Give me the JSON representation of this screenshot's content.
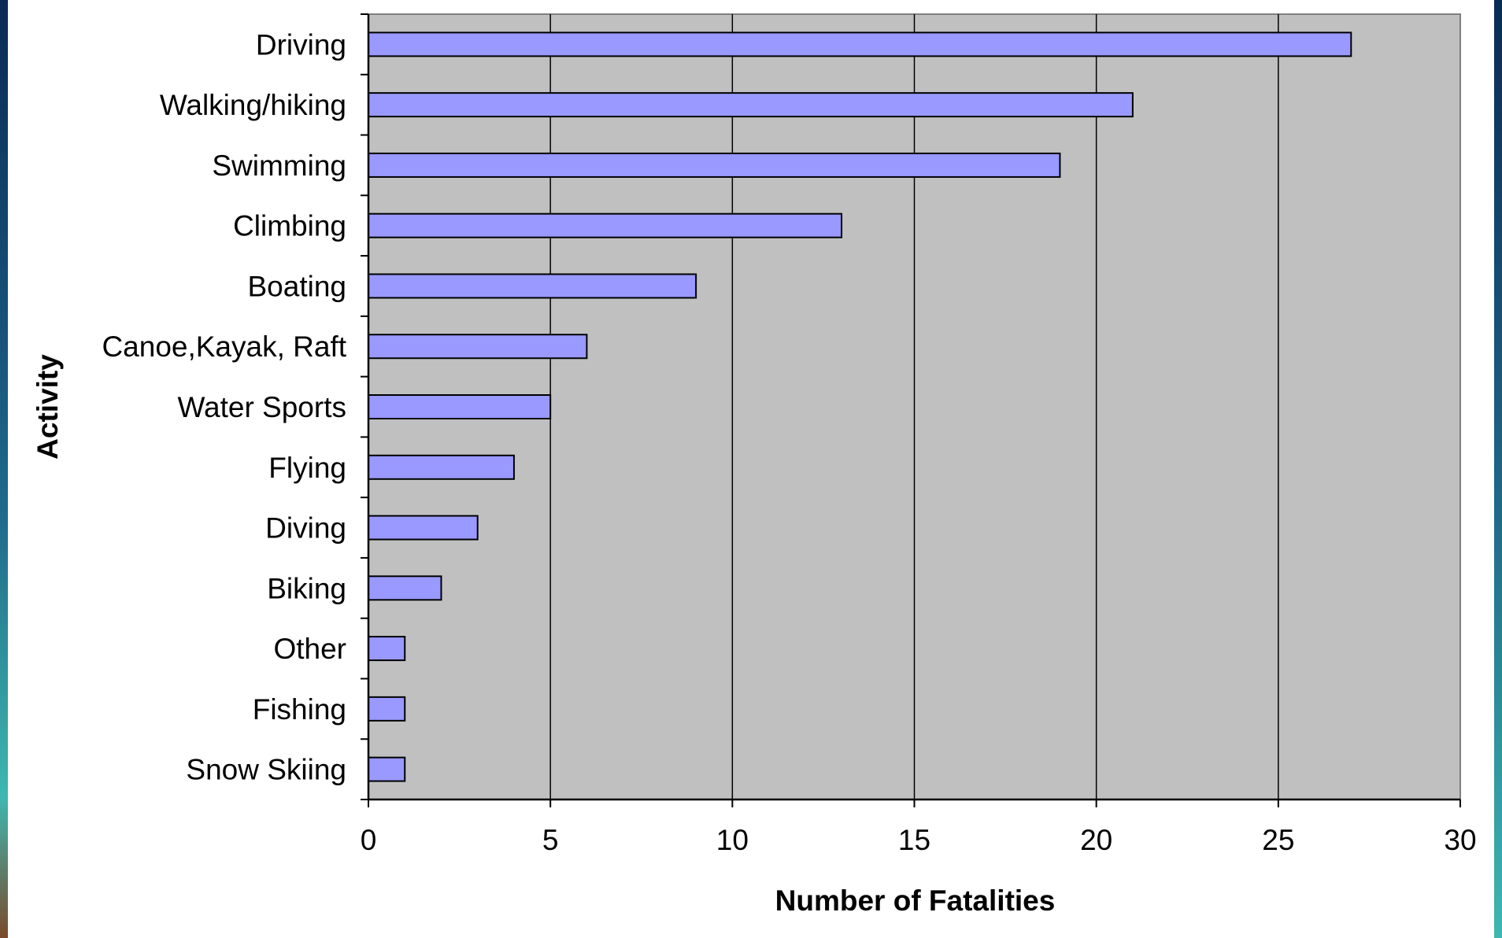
{
  "chart_data": {
    "type": "bar",
    "orientation": "horizontal",
    "title": "",
    "xlabel": "Number of Fatalities",
    "ylabel": "Activity",
    "categories": [
      "Driving",
      "Walking/hiking",
      "Swimming",
      "Climbing",
      "Boating",
      "Canoe,Kayak, Raft",
      "Water Sports",
      "Flying",
      "Diving",
      "Biking",
      "Other",
      "Fishing",
      "Snow Skiing"
    ],
    "values": [
      27,
      21,
      19,
      13,
      9,
      6,
      5,
      4,
      3,
      2,
      1,
      1,
      1
    ],
    "xlim": [
      0,
      30
    ],
    "xticks": [
      "0",
      "5",
      "10",
      "15",
      "20",
      "25",
      "30"
    ],
    "grid": "vertical",
    "legend": "none",
    "colors": {
      "bar_fill": "#9999ff",
      "bar_stroke": "#000000",
      "plot_background": "#c0c0c0",
      "gridline": "#000000"
    }
  }
}
